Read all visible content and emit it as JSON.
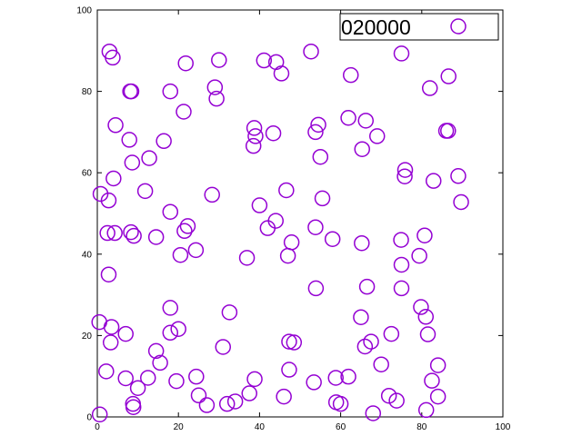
{
  "chart_data": {
    "type": "scatter",
    "title": "",
    "xlabel": "",
    "ylabel": "",
    "xlim": [
      0,
      100
    ],
    "ylim": [
      0,
      100
    ],
    "xticks": [
      "0",
      "20",
      "40",
      "60",
      "80",
      "100"
    ],
    "yticks": [
      "0",
      "20",
      "40",
      "60",
      "80",
      "100"
    ],
    "grid": false,
    "legend_position": "top-right",
    "series": [
      {
        "name": "020000",
        "color": "#9400d3",
        "marker": "open-circle",
        "points": [
          [
            0.6,
            0.6
          ],
          [
            3.0,
            89.8
          ],
          [
            3.8,
            88.3
          ],
          [
            21.8,
            86.9
          ],
          [
            30.0,
            87.7
          ],
          [
            41.1,
            87.6
          ],
          [
            44.1,
            87.2
          ],
          [
            52.7,
            89.8
          ],
          [
            75.0,
            89.3
          ],
          [
            62.5,
            84.0
          ],
          [
            45.4,
            84.4
          ],
          [
            86.6,
            83.7
          ],
          [
            8.1,
            80.0
          ],
          [
            8.4,
            80.0
          ],
          [
            18.0,
            80.0
          ],
          [
            29.0,
            81.0
          ],
          [
            82.0,
            80.8
          ],
          [
            29.4,
            78.2
          ],
          [
            21.3,
            75.0
          ],
          [
            4.5,
            71.7
          ],
          [
            38.7,
            71.0
          ],
          [
            53.8,
            70.0
          ],
          [
            54.5,
            71.8
          ],
          [
            61.9,
            73.5
          ],
          [
            66.2,
            72.8
          ],
          [
            86.0,
            70.3
          ],
          [
            86.5,
            70.3
          ],
          [
            7.9,
            68.1
          ],
          [
            16.4,
            67.8
          ],
          [
            38.5,
            66.6
          ],
          [
            43.4,
            69.7
          ],
          [
            39.0,
            69.0
          ],
          [
            65.3,
            65.8
          ],
          [
            69.0,
            69.0
          ],
          [
            12.8,
            63.6
          ],
          [
            8.6,
            62.5
          ],
          [
            55.0,
            63.9
          ],
          [
            75.9,
            60.7
          ],
          [
            75.8,
            59.1
          ],
          [
            82.9,
            58.0
          ],
          [
            89.0,
            59.2
          ],
          [
            4.0,
            58.6
          ],
          [
            0.8,
            54.8
          ],
          [
            2.8,
            53.2
          ],
          [
            11.8,
            55.5
          ],
          [
            28.3,
            54.6
          ],
          [
            46.6,
            55.7
          ],
          [
            55.5,
            53.7
          ],
          [
            89.7,
            52.8
          ],
          [
            18.0,
            50.4
          ],
          [
            40.0,
            52.0
          ],
          [
            44.0,
            48.2
          ],
          [
            42.0,
            46.4
          ],
          [
            53.8,
            46.6
          ],
          [
            21.5,
            45.7
          ],
          [
            22.3,
            46.9
          ],
          [
            2.5,
            45.2
          ],
          [
            4.3,
            45.2
          ],
          [
            8.3,
            45.4
          ],
          [
            9.0,
            44.5
          ],
          [
            14.5,
            44.2
          ],
          [
            47.9,
            42.9
          ],
          [
            58.0,
            43.7
          ],
          [
            65.2,
            42.7
          ],
          [
            74.9,
            43.5
          ],
          [
            80.7,
            44.6
          ],
          [
            20.5,
            39.8
          ],
          [
            24.3,
            41.0
          ],
          [
            36.9,
            39.1
          ],
          [
            47.0,
            39.6
          ],
          [
            79.4,
            39.6
          ],
          [
            75.0,
            37.4
          ],
          [
            2.8,
            35.0
          ],
          [
            53.9,
            31.6
          ],
          [
            66.5,
            32.0
          ],
          [
            75.0,
            31.6
          ],
          [
            18.0,
            26.8
          ],
          [
            32.6,
            25.7
          ],
          [
            79.8,
            27.0
          ],
          [
            81.0,
            24.6
          ],
          [
            65.0,
            24.5
          ],
          [
            0.5,
            23.3
          ],
          [
            3.5,
            22.1
          ],
          [
            7.0,
            20.4
          ],
          [
            18.0,
            20.7
          ],
          [
            20.0,
            21.6
          ],
          [
            3.3,
            18.3
          ],
          [
            31.0,
            17.2
          ],
          [
            47.3,
            18.5
          ],
          [
            48.5,
            18.3
          ],
          [
            66.0,
            17.3
          ],
          [
            67.5,
            18.5
          ],
          [
            72.5,
            20.4
          ],
          [
            81.5,
            20.3
          ],
          [
            14.5,
            16.2
          ],
          [
            15.5,
            13.3
          ],
          [
            70.0,
            12.9
          ],
          [
            84.0,
            12.7
          ],
          [
            2.2,
            11.2
          ],
          [
            7.0,
            9.5
          ],
          [
            12.5,
            9.6
          ],
          [
            19.5,
            8.8
          ],
          [
            24.4,
            9.9
          ],
          [
            38.8,
            9.3
          ],
          [
            47.3,
            11.6
          ],
          [
            58.8,
            9.6
          ],
          [
            61.9,
            9.9
          ],
          [
            82.5,
            8.9
          ],
          [
            10.0,
            7.1
          ],
          [
            25.0,
            5.3
          ],
          [
            37.5,
            5.8
          ],
          [
            46.0,
            5.0
          ],
          [
            53.4,
            8.5
          ],
          [
            71.9,
            5.2
          ],
          [
            73.8,
            4.0
          ],
          [
            84.0,
            5.0
          ],
          [
            8.8,
            3.2
          ],
          [
            8.9,
            2.4
          ],
          [
            27.0,
            2.9
          ],
          [
            32.0,
            3.2
          ],
          [
            34.0,
            3.8
          ],
          [
            58.9,
            3.6
          ],
          [
            60.0,
            3.2
          ],
          [
            68.0,
            0.9
          ],
          [
            81.1,
            1.7
          ]
        ]
      }
    ]
  }
}
